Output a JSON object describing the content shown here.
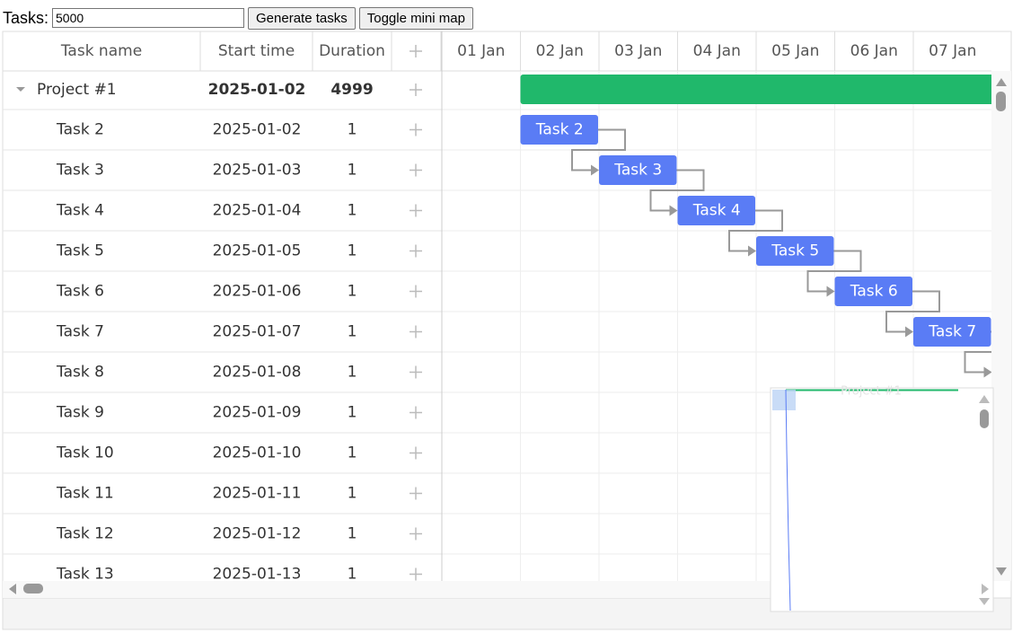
{
  "toolbar": {
    "label": "Tasks:",
    "input": "5000",
    "buttons": [
      "Generate tasks",
      "Toggle mini map"
    ]
  },
  "grid": {
    "columns": [
      "Task name",
      "Start time",
      "Duration"
    ],
    "rows": [
      {
        "name": "Project #1",
        "start": "2025-01-02",
        "duration": "4999"
      },
      {
        "name": "Task 2",
        "start": "2025-01-02",
        "duration": "1"
      },
      {
        "name": "Task 3",
        "start": "2025-01-03",
        "duration": "1"
      },
      {
        "name": "Task 4",
        "start": "2025-01-04",
        "duration": "1"
      },
      {
        "name": "Task 5",
        "start": "2025-01-05",
        "duration": "1"
      },
      {
        "name": "Task 6",
        "start": "2025-01-06",
        "duration": "1"
      },
      {
        "name": "Task 7",
        "start": "2025-01-07",
        "duration": "1"
      },
      {
        "name": "Task 8",
        "start": "2025-01-08",
        "duration": "1"
      },
      {
        "name": "Task 9",
        "start": "2025-01-09",
        "duration": "1"
      },
      {
        "name": "Task 10",
        "start": "2025-01-10",
        "duration": "1"
      },
      {
        "name": "Task 11",
        "start": "2025-01-11",
        "duration": "1"
      },
      {
        "name": "Task 12",
        "start": "2025-01-12",
        "duration": "1"
      },
      {
        "name": "Task 13",
        "start": "2025-01-13",
        "duration": "1"
      }
    ]
  },
  "timeline": {
    "days": [
      "01 Jan",
      "02 Jan",
      "03 Jan",
      "04 Jan",
      "05 Jan",
      "06 Jan",
      "07 Jan"
    ]
  },
  "minimap": {
    "label": "Project #1"
  }
}
